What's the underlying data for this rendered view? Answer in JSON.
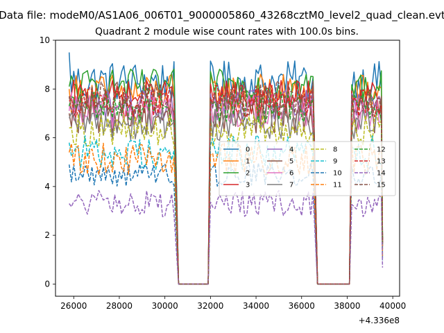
{
  "figure": {
    "suptitle": "Data file: modeM0/AS1A06_006T01_9000005860_43268cztM0_level2_quad_clean.evt"
  },
  "chart_data": {
    "type": "line",
    "title": "Quadrant 2 module wise count rates with 100.0s bins.",
    "xlabel": "",
    "ylabel": "",
    "x_offset_label": "+4.336e8",
    "xlim": [
      25200,
      40300
    ],
    "ylim": [
      -0.5,
      10
    ],
    "x_ticks": [
      26000,
      28000,
      30000,
      32000,
      34000,
      36000,
      38000,
      40000
    ],
    "y_ticks": [
      0,
      2,
      4,
      6,
      8,
      10
    ],
    "grid": false,
    "legend_location": "center-right",
    "legend_columns": 4,
    "segments": [
      {
        "start": 25800,
        "end": 30400
      },
      {
        "start": 32000,
        "end": 36500
      },
      {
        "start": 38200,
        "end": 39500
      }
    ],
    "gaps": [
      {
        "start": 30600,
        "end": 31900
      },
      {
        "start": 36700,
        "end": 38100
      }
    ],
    "series": [
      {
        "name": "0",
        "color": "#1f77b4",
        "dash": "solid",
        "mean": 8.3,
        "start_level": 9.5,
        "min": 7.6,
        "max": 9.5
      },
      {
        "name": "1",
        "color": "#ff7f0e",
        "dash": "solid",
        "mean": 7.8,
        "start_level": 8.0,
        "min": 7.0,
        "max": 8.9
      },
      {
        "name": "2",
        "color": "#2ca02c",
        "dash": "solid",
        "mean": 8.1,
        "start_level": 8.1,
        "min": 7.3,
        "max": 8.9
      },
      {
        "name": "3",
        "color": "#d62728",
        "dash": "solid",
        "mean": 7.6,
        "start_level": 7.6,
        "min": 6.9,
        "max": 8.6
      },
      {
        "name": "4",
        "color": "#9467bd",
        "dash": "solid",
        "mean": 7.3,
        "start_level": 7.3,
        "min": 6.5,
        "max": 8.0
      },
      {
        "name": "5",
        "color": "#8c564b",
        "dash": "solid",
        "mean": 7.0,
        "start_level": 7.0,
        "min": 6.2,
        "max": 8.2
      },
      {
        "name": "6",
        "color": "#e377c2",
        "dash": "solid",
        "mean": 7.1,
        "start_level": 7.1,
        "min": 6.3,
        "max": 8.0
      },
      {
        "name": "7",
        "color": "#7f7f7f",
        "dash": "solid",
        "mean": 6.6,
        "start_level": 6.8,
        "min": 5.8,
        "max": 7.4
      },
      {
        "name": "8",
        "color": "#bcbd22",
        "dash": "dashed",
        "mean": 6.3,
        "start_level": 6.4,
        "min": 5.6,
        "max": 7.1
      },
      {
        "name": "9",
        "color": "#17becf",
        "dash": "dashed",
        "mean": 5.4,
        "start_level": 5.8,
        "min": 4.7,
        "max": 6.3
      },
      {
        "name": "10",
        "color": "#1f77b4",
        "dash": "dashed",
        "mean": 4.5,
        "start_level": 4.9,
        "min": 3.9,
        "max": 5.0
      },
      {
        "name": "11",
        "color": "#ff7f0e",
        "dash": "dashed",
        "mean": 5.1,
        "start_level": 5.4,
        "min": 4.5,
        "max": 6.0
      },
      {
        "name": "12",
        "color": "#2ca02c",
        "dash": "dashed",
        "mean": 7.3,
        "start_level": 7.3,
        "min": 6.6,
        "max": 8.1
      },
      {
        "name": "13",
        "color": "#d62728",
        "dash": "dashed",
        "mean": 7.5,
        "start_level": 7.5,
        "min": 6.8,
        "max": 8.3
      },
      {
        "name": "14",
        "color": "#9467bd",
        "dash": "dashed",
        "mean": 3.3,
        "start_level": 3.3,
        "min": 2.7,
        "max": 3.9
      },
      {
        "name": "15",
        "color": "#8c564b",
        "dash": "dashed",
        "mean": 7.6,
        "start_level": 7.7,
        "min": 6.9,
        "max": 8.5
      }
    ]
  }
}
